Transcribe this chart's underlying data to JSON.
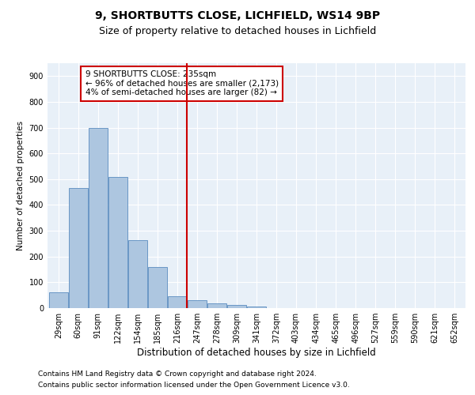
{
  "title1": "9, SHORTBUTTS CLOSE, LICHFIELD, WS14 9BP",
  "title2": "Size of property relative to detached houses in Lichfield",
  "xlabel": "Distribution of detached houses by size in Lichfield",
  "ylabel": "Number of detached properties",
  "categories": [
    "29sqm",
    "60sqm",
    "91sqm",
    "122sqm",
    "154sqm",
    "185sqm",
    "216sqm",
    "247sqm",
    "278sqm",
    "309sqm",
    "341sqm",
    "372sqm",
    "403sqm",
    "434sqm",
    "465sqm",
    "496sqm",
    "527sqm",
    "559sqm",
    "590sqm",
    "621sqm",
    "652sqm"
  ],
  "values": [
    60,
    465,
    700,
    510,
    265,
    158,
    45,
    32,
    18,
    12,
    7,
    0,
    0,
    0,
    0,
    0,
    0,
    0,
    0,
    0,
    0
  ],
  "bar_color": "#adc6e0",
  "bar_edgecolor": "#5a8cbf",
  "vline_x": 6.5,
  "vline_color": "#cc0000",
  "annotation_text": "9 SHORTBUTTS CLOSE: 235sqm\n← 96% of detached houses are smaller (2,173)\n4% of semi-detached houses are larger (82) →",
  "box_color": "#cc0000",
  "ylim": [
    0,
    950
  ],
  "yticks": [
    0,
    100,
    200,
    300,
    400,
    500,
    600,
    700,
    800,
    900
  ],
  "background_color": "#e8f0f8",
  "grid_color": "#ffffff",
  "footer1": "Contains HM Land Registry data © Crown copyright and database right 2024.",
  "footer2": "Contains public sector information licensed under the Open Government Licence v3.0.",
  "title1_fontsize": 10,
  "title2_fontsize": 9,
  "xlabel_fontsize": 8.5,
  "ylabel_fontsize": 7.5,
  "tick_fontsize": 7,
  "annot_fontsize": 7.5,
  "footer_fontsize": 6.5
}
